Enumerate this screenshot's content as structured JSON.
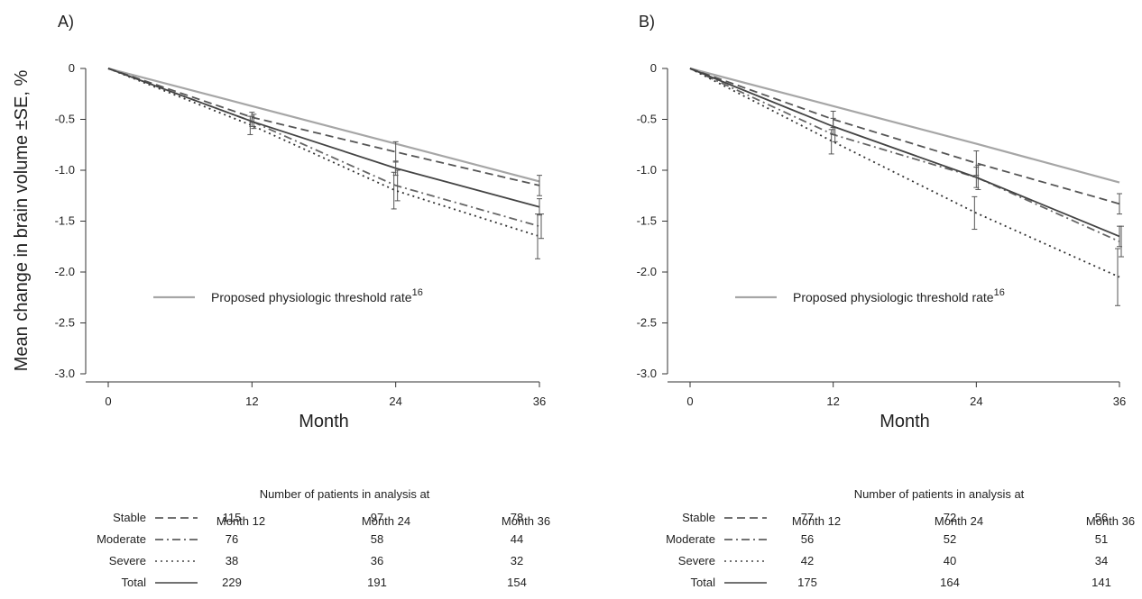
{
  "ylabel": "Mean change in brain volume ±SE, %",
  "chart_data": [
    {
      "type": "line",
      "panel_label": "A)",
      "xlabel": "Month",
      "ylabel": "Mean change in brain volume ±SE, %",
      "x": [
        0,
        12,
        24,
        36
      ],
      "xticks": [
        "0",
        "12",
        "24",
        "36"
      ],
      "xlim": [
        0,
        36
      ],
      "ylim": [
        -3.0,
        0
      ],
      "yticks": [
        "0",
        "-0.5",
        "-1.0",
        "-1.5",
        "-2.0",
        "-2.5",
        "-3.0"
      ],
      "grid": false,
      "series": [
        {
          "name": "Stable",
          "style": "dashed",
          "color": "#555555",
          "values": [
            0,
            -0.48,
            -0.82,
            -1.15
          ],
          "se": [
            0,
            0.05,
            0.1,
            0.1
          ]
        },
        {
          "name": "Moderate",
          "style": "dashdot",
          "color": "#666666",
          "values": [
            0,
            -0.52,
            -1.15,
            -1.55
          ],
          "se": [
            0,
            0.07,
            0.15,
            0.12
          ]
        },
        {
          "name": "Severe",
          "style": "dotted",
          "color": "#333333",
          "values": [
            0,
            -0.56,
            -1.2,
            -1.65
          ],
          "se": [
            0,
            0.09,
            0.18,
            0.22
          ]
        },
        {
          "name": "Total",
          "style": "solid",
          "color": "#444444",
          "values": [
            0,
            -0.52,
            -0.98,
            -1.36
          ],
          "se": [
            0,
            0.05,
            0.07,
            0.08
          ]
        },
        {
          "name": "Proposed physiologic threshold rate",
          "style": "solid",
          "color": "#a6a6a6",
          "values": [
            0,
            -0.37,
            -0.74,
            -1.11
          ],
          "se": [
            0,
            0,
            0,
            0
          ]
        }
      ],
      "legend": {
        "label": "Proposed physiologic threshold rate",
        "superscript": "16"
      },
      "table": {
        "title": "Number of patients in analysis at",
        "columns": [
          "Month 12",
          "Month 24",
          "Month 36"
        ],
        "rows": [
          {
            "label": "Stable",
            "style": "dashed",
            "values": [
              "115",
              "97",
              "78"
            ]
          },
          {
            "label": "Moderate",
            "style": "dashdot",
            "values": [
              "76",
              "58",
              "44"
            ]
          },
          {
            "label": "Severe",
            "style": "dotted",
            "values": [
              "38",
              "36",
              "32"
            ]
          },
          {
            "label": "Total",
            "style": "solid",
            "values": [
              "229",
              "191",
              "154"
            ]
          }
        ]
      }
    },
    {
      "type": "line",
      "panel_label": "B)",
      "xlabel": "Month",
      "ylabel": "",
      "x": [
        0,
        12,
        24,
        36
      ],
      "xticks": [
        "0",
        "12",
        "24",
        "36"
      ],
      "xlim": [
        0,
        36
      ],
      "ylim": [
        -3.0,
        0
      ],
      "yticks": [
        "0",
        "-0.5",
        "-1.0",
        "-1.5",
        "-2.0",
        "-2.5",
        "-3.0"
      ],
      "grid": false,
      "series": [
        {
          "name": "Stable",
          "style": "dashed",
          "color": "#555555",
          "values": [
            0,
            -0.5,
            -0.93,
            -1.33
          ],
          "se": [
            0,
            0.08,
            0.12,
            0.1
          ]
        },
        {
          "name": "Moderate",
          "style": "dashdot",
          "color": "#666666",
          "values": [
            0,
            -0.65,
            -1.07,
            -1.7
          ],
          "se": [
            0,
            0.07,
            0.12,
            0.15
          ]
        },
        {
          "name": "Severe",
          "style": "dotted",
          "color": "#333333",
          "values": [
            0,
            -0.72,
            -1.42,
            -2.05
          ],
          "se": [
            0,
            0.12,
            0.16,
            0.28
          ]
        },
        {
          "name": "Total",
          "style": "solid",
          "color": "#444444",
          "values": [
            0,
            -0.57,
            -1.07,
            -1.65
          ],
          "se": [
            0,
            0.08,
            0.1,
            0.1
          ]
        },
        {
          "name": "Proposed physiologic threshold rate",
          "style": "solid",
          "color": "#a6a6a6",
          "values": [
            0,
            -0.37,
            -0.74,
            -1.12
          ],
          "se": [
            0,
            0,
            0,
            0
          ]
        }
      ],
      "legend": {
        "label": "Proposed physiologic threshold rate",
        "superscript": "16"
      },
      "table": {
        "title": "Number of patients in analysis at",
        "columns": [
          "Month 12",
          "Month 24",
          "Month 36"
        ],
        "rows": [
          {
            "label": "Stable",
            "style": "dashed",
            "values": [
              "77",
              "72",
              "56"
            ]
          },
          {
            "label": "Moderate",
            "style": "dashdot",
            "values": [
              "56",
              "52",
              "51"
            ]
          },
          {
            "label": "Severe",
            "style": "dotted",
            "values": [
              "42",
              "40",
              "34"
            ]
          },
          {
            "label": "Total",
            "style": "solid",
            "values": [
              "175",
              "164",
              "141"
            ]
          }
        ]
      }
    }
  ]
}
